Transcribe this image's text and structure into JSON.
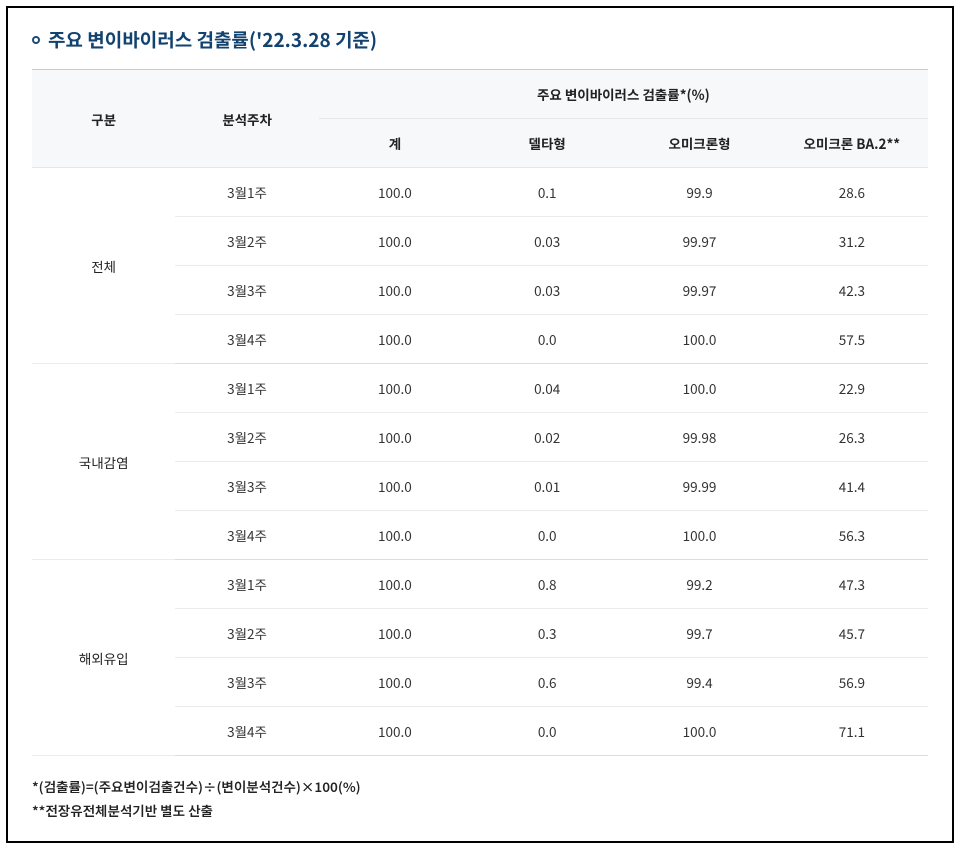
{
  "title": "주요 변이바이러스 검출률('22.3.28 기준)",
  "colors": {
    "title": "#12426f",
    "header_bg": "#f7f8fa",
    "border_outer": "#000000",
    "border_header": "#c8ccd1",
    "border_row": "#ececec",
    "border_group": "#d9dde2",
    "text": "#333333"
  },
  "header": {
    "category": "구분",
    "week": "분석주차",
    "group_label": "주요 변이바이러스 검출률*(%)",
    "columns": [
      "계",
      "델타형",
      "오미크론형",
      "오미크론 BA.2**"
    ]
  },
  "groups": [
    {
      "name": "전체",
      "rows": [
        {
          "week": "3월1주",
          "values": [
            "100.0",
            "0.1",
            "99.9",
            "28.6"
          ]
        },
        {
          "week": "3월2주",
          "values": [
            "100.0",
            "0.03",
            "99.97",
            "31.2"
          ]
        },
        {
          "week": "3월3주",
          "values": [
            "100.0",
            "0.03",
            "99.97",
            "42.3"
          ]
        },
        {
          "week": "3월4주",
          "values": [
            "100.0",
            "0.0",
            "100.0",
            "57.5"
          ]
        }
      ]
    },
    {
      "name": "국내감염",
      "rows": [
        {
          "week": "3월1주",
          "values": [
            "100.0",
            "0.04",
            "100.0",
            "22.9"
          ]
        },
        {
          "week": "3월2주",
          "values": [
            "100.0",
            "0.02",
            "99.98",
            "26.3"
          ]
        },
        {
          "week": "3월3주",
          "values": [
            "100.0",
            "0.01",
            "99.99",
            "41.4"
          ]
        },
        {
          "week": "3월4주",
          "values": [
            "100.0",
            "0.0",
            "100.0",
            "56.3"
          ]
        }
      ]
    },
    {
      "name": "해외유입",
      "rows": [
        {
          "week": "3월1주",
          "values": [
            "100.0",
            "0.8",
            "99.2",
            "47.3"
          ]
        },
        {
          "week": "3월2주",
          "values": [
            "100.0",
            "0.3",
            "99.7",
            "45.7"
          ]
        },
        {
          "week": "3월3주",
          "values": [
            "100.0",
            "0.6",
            "99.4",
            "56.9"
          ]
        },
        {
          "week": "3월4주",
          "values": [
            "100.0",
            "0.0",
            "100.0",
            "71.1"
          ]
        }
      ]
    }
  ],
  "footnotes": [
    "*(검출률)=(주요변이검출건수)÷(변이분석건수)×100(%)",
    "**전장유전체분석기반 별도 산출"
  ]
}
